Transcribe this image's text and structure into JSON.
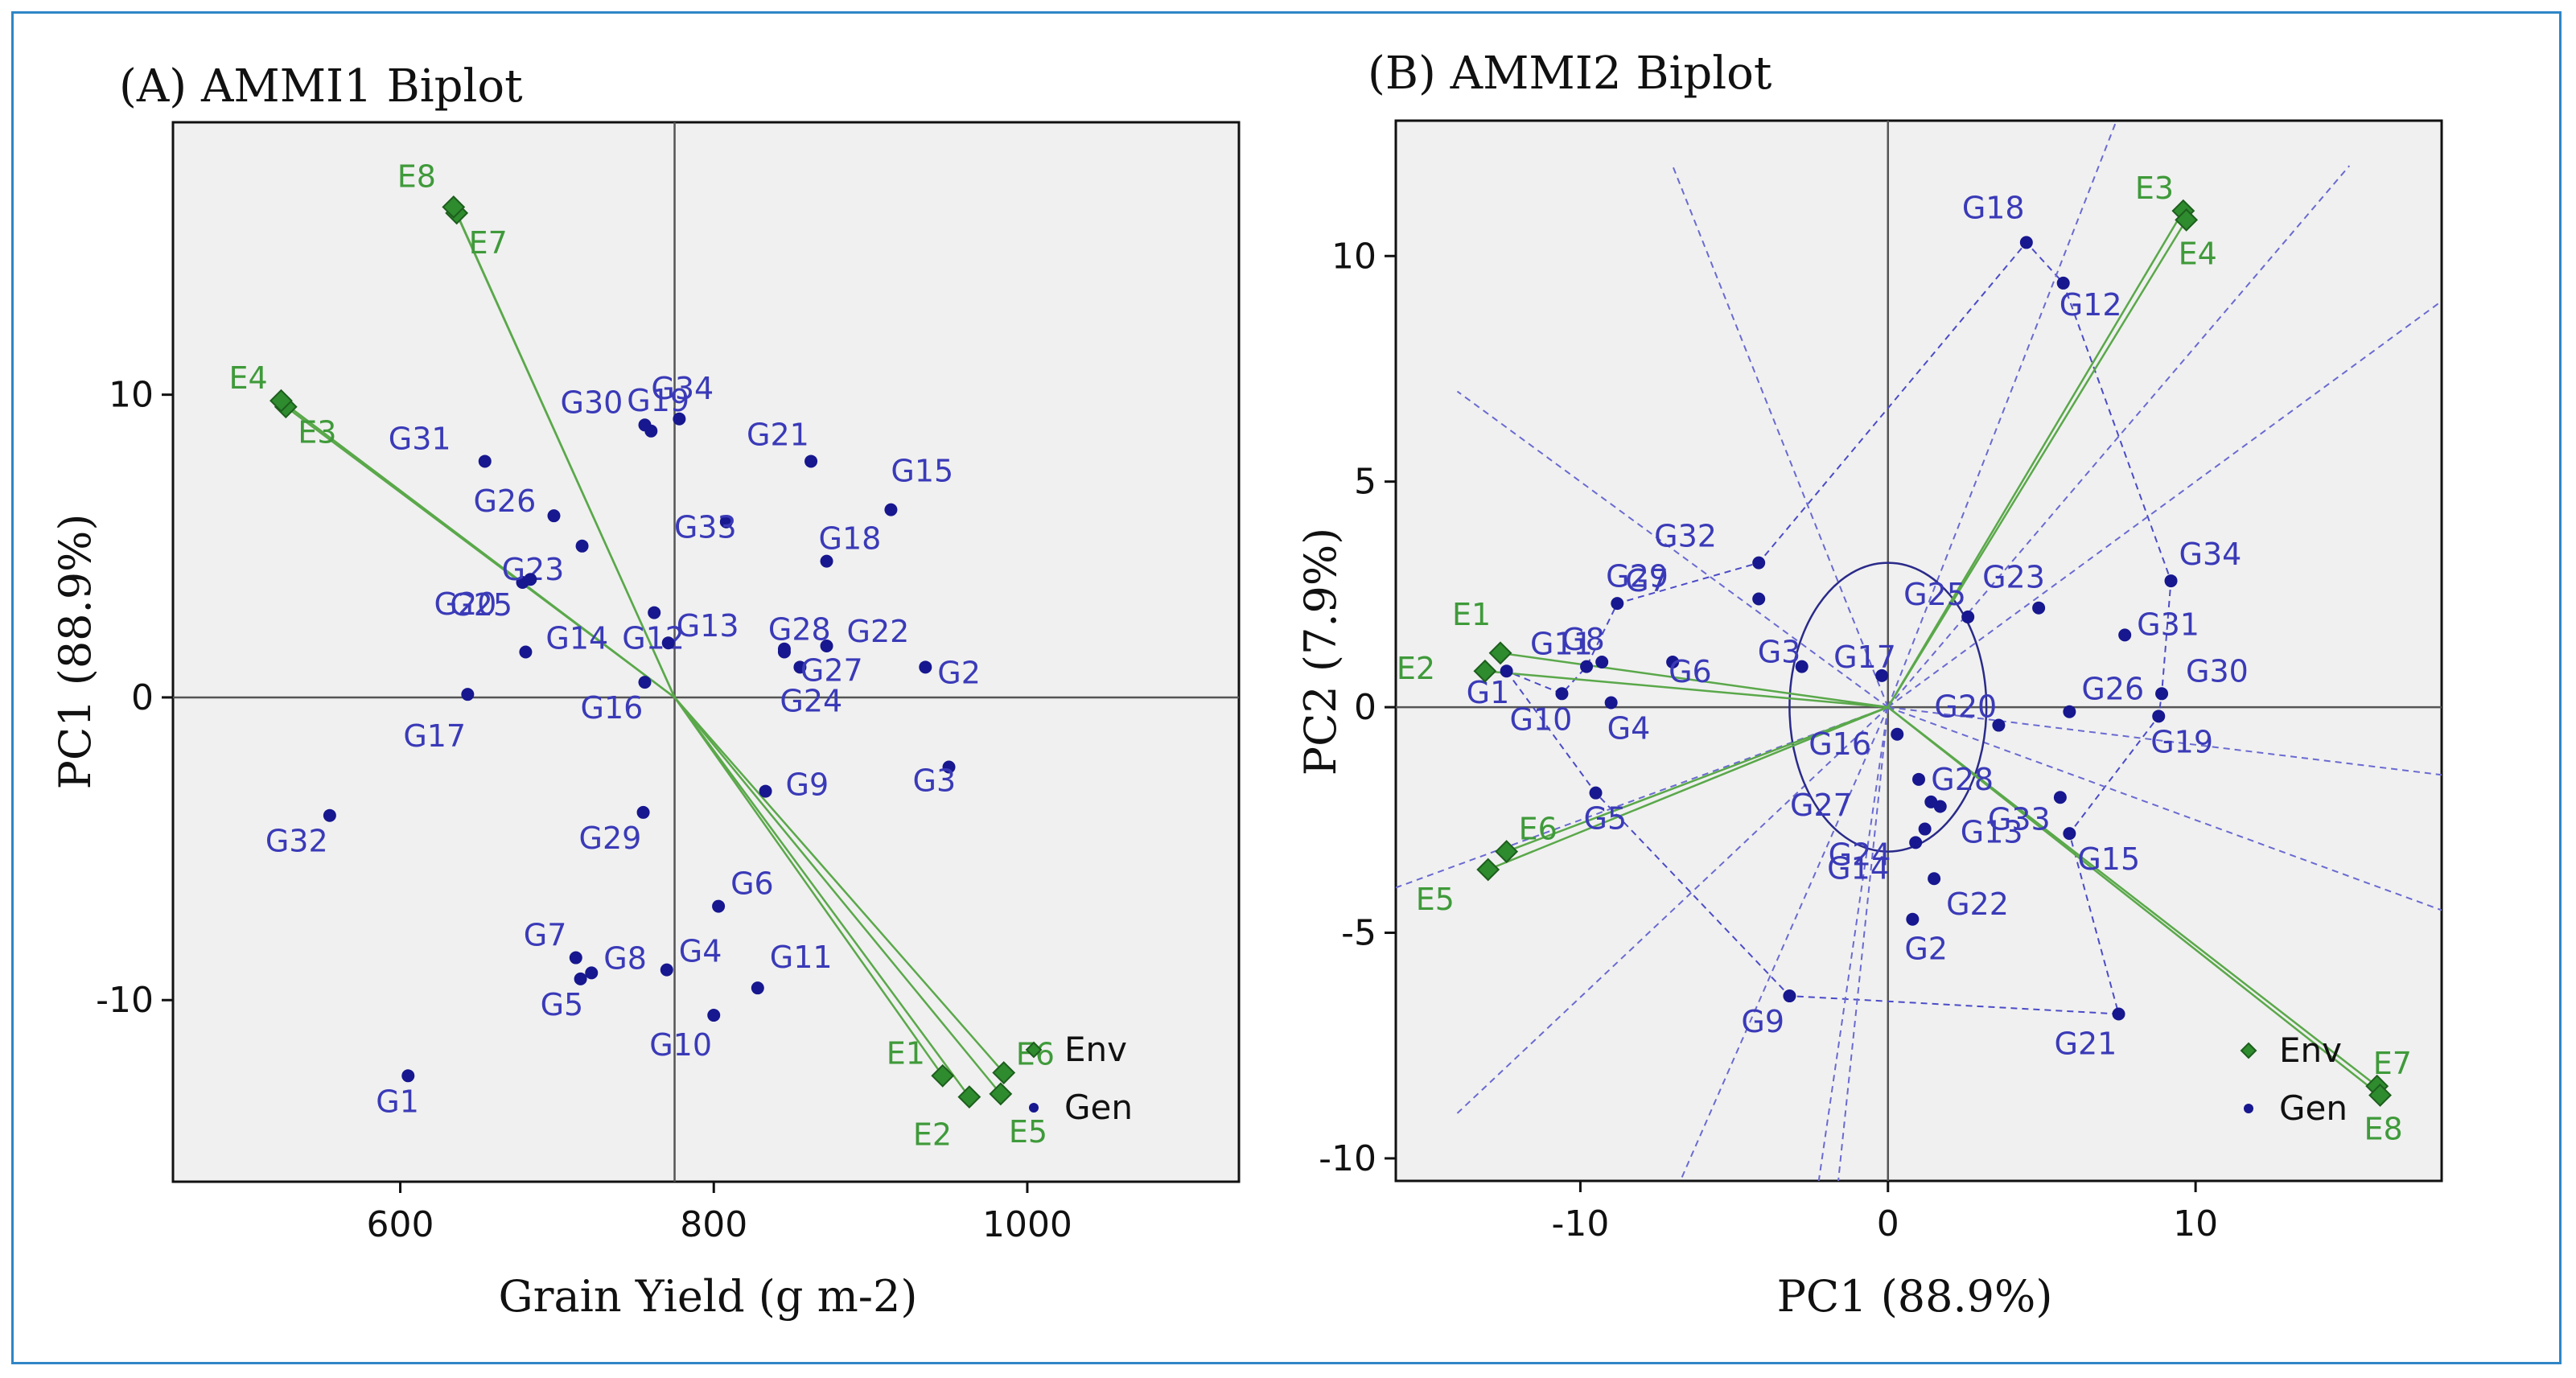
{
  "chart_data": [
    {
      "type": "scatter",
      "title": "(A) AMMI1 Biplot",
      "xlabel": "Grain Yield (g m-2)",
      "ylabel": "PC1 (88.9%)",
      "xlim": [
        455,
        1135
      ],
      "ylim": [
        -16,
        19
      ],
      "xticks": [
        600,
        800,
        1000
      ],
      "yticks": [
        -10,
        0,
        10
      ],
      "origin": [
        775,
        0
      ],
      "legend": {
        "entries": [
          "Env",
          "Gen"
        ],
        "position": "bottom-right"
      },
      "environments": [
        {
          "name": "E1",
          "x": 946,
          "y": -12.5
        },
        {
          "name": "E2",
          "x": 963,
          "y": -13.2
        },
        {
          "name": "E3",
          "x": 527,
          "y": 9.6
        },
        {
          "name": "E4",
          "x": 524,
          "y": 9.8
        },
        {
          "name": "E5",
          "x": 983,
          "y": -13.1
        },
        {
          "name": "E6",
          "x": 985,
          "y": -12.4
        },
        {
          "name": "E7",
          "x": 636,
          "y": 16.0
        },
        {
          "name": "E8",
          "x": 634,
          "y": 16.2
        }
      ],
      "genotypes": [
        {
          "name": "G1",
          "x": 605,
          "y": -12.5
        },
        {
          "name": "G2",
          "x": 935,
          "y": 1.0
        },
        {
          "name": "G3",
          "x": 950,
          "y": -2.3
        },
        {
          "name": "G4",
          "x": 770,
          "y": -9.0
        },
        {
          "name": "G5",
          "x": 715,
          "y": -9.3
        },
        {
          "name": "G6",
          "x": 803,
          "y": -6.9
        },
        {
          "name": "G7",
          "x": 712,
          "y": -8.6
        },
        {
          "name": "G8",
          "x": 722,
          "y": -9.1
        },
        {
          "name": "G9",
          "x": 833,
          "y": -3.1
        },
        {
          "name": "G10",
          "x": 800,
          "y": -10.5
        },
        {
          "name": "G11",
          "x": 828,
          "y": -9.6
        },
        {
          "name": "G12",
          "x": 762,
          "y": 2.8
        },
        {
          "name": "G13",
          "x": 771,
          "y": 1.8
        },
        {
          "name": "G14",
          "x": 680,
          "y": 1.5
        },
        {
          "name": "G15",
          "x": 913,
          "y": 6.2
        },
        {
          "name": "G16",
          "x": 756,
          "y": 0.5
        },
        {
          "name": "G17",
          "x": 643,
          "y": 0.1
        },
        {
          "name": "G18",
          "x": 872,
          "y": 4.5
        },
        {
          "name": "G19",
          "x": 760,
          "y": 8.8
        },
        {
          "name": "G20",
          "x": 678,
          "y": 3.8
        },
        {
          "name": "G21",
          "x": 862,
          "y": 7.8
        },
        {
          "name": "G22",
          "x": 872,
          "y": 1.7
        },
        {
          "name": "G23",
          "x": 716,
          "y": 5.0
        },
        {
          "name": "G24",
          "x": 855,
          "y": 1.0
        },
        {
          "name": "G25",
          "x": 683,
          "y": 3.9
        },
        {
          "name": "G26",
          "x": 698,
          "y": 6.0
        },
        {
          "name": "G27",
          "x": 845,
          "y": 1.6
        },
        {
          "name": "G28",
          "x": 845,
          "y": 1.5
        },
        {
          "name": "G29",
          "x": 755,
          "y": -3.8
        },
        {
          "name": "G30",
          "x": 756,
          "y": 9.0
        },
        {
          "name": "G31",
          "x": 654,
          "y": 7.8
        },
        {
          "name": "G32",
          "x": 555,
          "y": -3.9
        },
        {
          "name": "G33",
          "x": 808,
          "y": 5.8
        },
        {
          "name": "G34",
          "x": 778,
          "y": 9.2
        }
      ]
    },
    {
      "type": "scatter",
      "title": "(B) AMMI2 Biplot",
      "xlabel": "PC1 (88.9%)",
      "ylabel": "PC2 (7.9%)",
      "xlim": [
        -16,
        18
      ],
      "ylim": [
        -10.5,
        13
      ],
      "xticks": [
        -10,
        0,
        10
      ],
      "yticks": [
        -10,
        -5,
        0,
        5,
        10
      ],
      "legend": {
        "entries": [
          "Env",
          "Gen"
        ],
        "position": "bottom-right"
      },
      "environments": [
        {
          "name": "E1",
          "x": -12.6,
          "y": 1.2
        },
        {
          "name": "E2",
          "x": -13.1,
          "y": 0.8
        },
        {
          "name": "E3",
          "x": 9.6,
          "y": 11.0
        },
        {
          "name": "E4",
          "x": 9.7,
          "y": 10.8
        },
        {
          "name": "E5",
          "x": -13.0,
          "y": -3.6
        },
        {
          "name": "E6",
          "x": -12.4,
          "y": -3.2
        },
        {
          "name": "E7",
          "x": 15.9,
          "y": -8.4
        },
        {
          "name": "E8",
          "x": 16.0,
          "y": -8.6
        }
      ],
      "genotypes": [
        {
          "name": "G1",
          "x": -12.4,
          "y": 0.8
        },
        {
          "name": "G2",
          "x": 0.8,
          "y": -4.7
        },
        {
          "name": "G3",
          "x": -2.8,
          "y": 0.9
        },
        {
          "name": "G4",
          "x": -9.0,
          "y": 0.1
        },
        {
          "name": "G5",
          "x": -9.5,
          "y": -1.9
        },
        {
          "name": "G6",
          "x": -7.0,
          "y": 1.0
        },
        {
          "name": "G7",
          "x": -8.8,
          "y": 2.3
        },
        {
          "name": "G8",
          "x": -9.3,
          "y": 1.0
        },
        {
          "name": "G9",
          "x": -3.2,
          "y": -6.4
        },
        {
          "name": "G10",
          "x": -10.6,
          "y": 0.3
        },
        {
          "name": "G11",
          "x": -9.8,
          "y": 0.9
        },
        {
          "name": "G12",
          "x": 5.7,
          "y": 9.4
        },
        {
          "name": "G13",
          "x": 1.7,
          "y": -2.2
        },
        {
          "name": "G14",
          "x": 0.9,
          "y": -3.0
        },
        {
          "name": "G15",
          "x": 5.9,
          "y": -2.8
        },
        {
          "name": "G16",
          "x": 0.3,
          "y": -0.6
        },
        {
          "name": "G17",
          "x": -0.2,
          "y": 0.7
        },
        {
          "name": "G18",
          "x": 4.5,
          "y": 10.3
        },
        {
          "name": "G19",
          "x": 8.8,
          "y": -0.2
        },
        {
          "name": "G20",
          "x": 3.6,
          "y": -0.4
        },
        {
          "name": "G21",
          "x": 7.5,
          "y": -6.8
        },
        {
          "name": "G22",
          "x": 1.5,
          "y": -3.8
        },
        {
          "name": "G23",
          "x": 4.9,
          "y": 2.2
        },
        {
          "name": "G24",
          "x": 1.2,
          "y": -2.7
        },
        {
          "name": "G25",
          "x": 2.6,
          "y": 2.0
        },
        {
          "name": "G26",
          "x": 5.9,
          "y": -0.1
        },
        {
          "name": "G27",
          "x": 1.0,
          "y": -1.6
        },
        {
          "name": "G28",
          "x": 1.4,
          "y": -2.1
        },
        {
          "name": "G29",
          "x": -4.2,
          "y": 2.4
        },
        {
          "name": "G30",
          "x": 8.9,
          "y": 0.3
        },
        {
          "name": "G31",
          "x": 7.7,
          "y": 1.6
        },
        {
          "name": "G32",
          "x": -4.2,
          "y": 3.2
        },
        {
          "name": "G33",
          "x": 5.6,
          "y": -2.0
        },
        {
          "name": "G34",
          "x": 9.2,
          "y": 2.8
        }
      ]
    }
  ]
}
